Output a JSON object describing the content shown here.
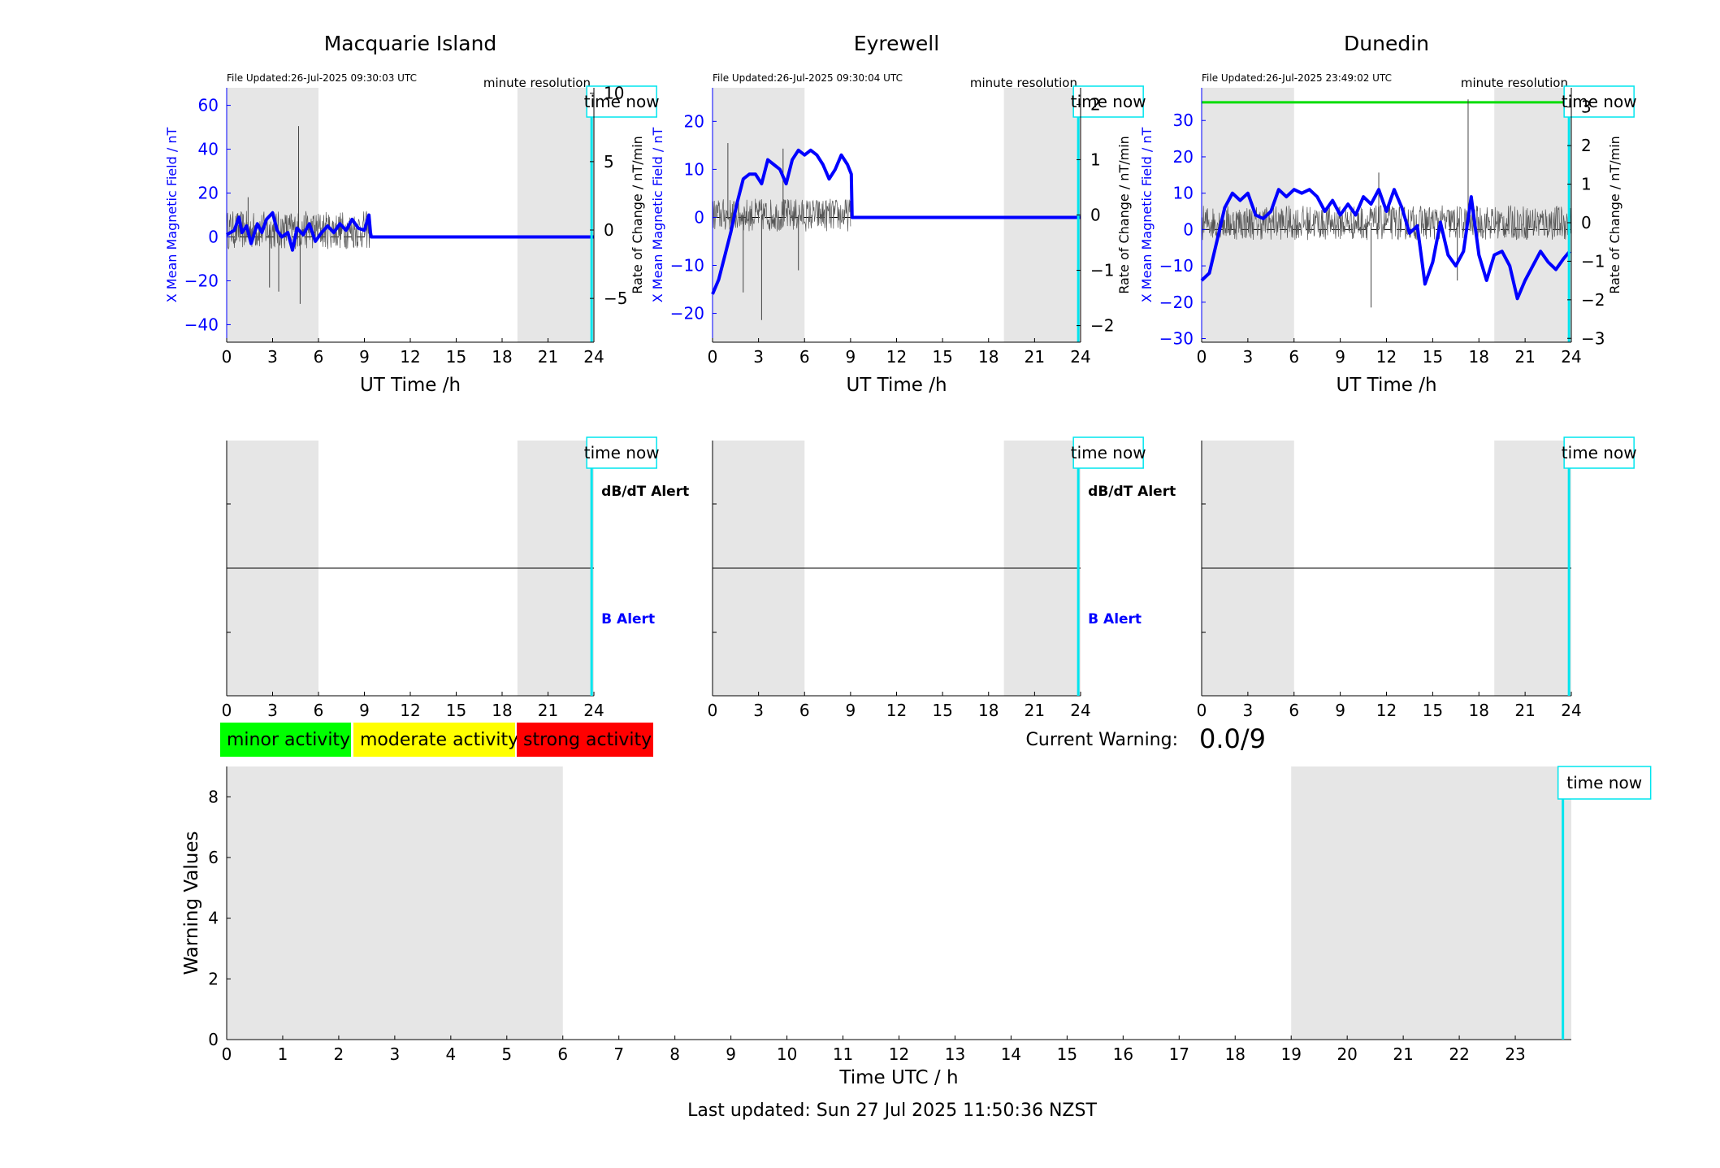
{
  "stations": [
    {
      "title": "Macquarie Island",
      "file_updated": "File Updated:26-Jul-2025 09:30:03 UTC",
      "resolution": "minute resolution",
      "time_now_label": "time now",
      "xlabel": "UT Time /h",
      "ylabel_left": "X Mean Magnetic Field / nT",
      "ylabel_right": "Rate of Change / nT/min",
      "show_alert_labels": true
    },
    {
      "title": "Eyrewell",
      "file_updated": "File Updated:26-Jul-2025 09:30:04 UTC",
      "resolution": "minute resolution",
      "time_now_label": "time now",
      "xlabel": "UT Time /h",
      "ylabel_left": "X Mean Magnetic Field / nT",
      "ylabel_right": "Rate of Change / nT/min",
      "show_alert_labels": true
    },
    {
      "title": "Dunedin",
      "file_updated": "File Updated:26-Jul-2025 23:49:02 UTC",
      "resolution": "minute resolution",
      "time_now_label": "time now",
      "xlabel": "UT Time /h",
      "ylabel_left": "X Mean Magnetic Field / nT",
      "ylabel_right": "Rate of Change / nT/min",
      "show_alert_labels": false
    }
  ],
  "alert_labels": {
    "dbdt": "dB/dT Alert",
    "b": "B Alert"
  },
  "legend": [
    {
      "label": "minor activity",
      "color": "#00ff00"
    },
    {
      "label": "moderate activity",
      "color": "#ffff00"
    },
    {
      "label": "strong activity",
      "color": "#ff0000"
    }
  ],
  "current_warning": {
    "label": "Current Warning:",
    "value": "0.0/9"
  },
  "bottom": {
    "xlabel": "Time UTC / h",
    "ylabel": "Warning Values",
    "time_now_label": "time now"
  },
  "last_updated": "Last updated: Sun 27 Jul 2025 11:50:36 NZST",
  "colors": {
    "b_field": "#0000ff",
    "rate": "#000000",
    "night_shade": "#e6e6e6",
    "time_now": "#00e5ee",
    "threshold": "#00dd00"
  },
  "chart_data": [
    {
      "type": "line",
      "title": "Macquarie Island",
      "xlabel": "UT Time /h",
      "ylabel": "X Mean Magnetic Field / nT",
      "ylabel_right": "Rate of Change / nT/min",
      "xlim": [
        0,
        24
      ],
      "ylim": [
        -48,
        68
      ],
      "ylim_right": [
        -8.2,
        10.4
      ],
      "xticks": [
        0,
        3,
        6,
        9,
        12,
        15,
        18,
        21,
        24
      ],
      "yticks": [
        -40,
        -20,
        0,
        20,
        40,
        60
      ],
      "yticks_right": [
        -5,
        0,
        5,
        10
      ],
      "night_shading": [
        [
          0,
          6
        ],
        [
          19,
          24
        ]
      ],
      "time_now": 23.85,
      "series": [
        {
          "name": "",
          "axis": "left",
          "color": "#0000ff",
          "x": [
            0,
            0.5,
            0.8,
            1,
            1.3,
            1.6,
            2,
            2.3,
            2.6,
            3,
            3.3,
            3.6,
            4,
            4.3,
            4.6,
            5,
            5.4,
            5.8,
            6.2,
            6.6,
            7,
            7.4,
            7.8,
            8.2,
            8.6,
            9,
            9.3,
            9.4,
            9.45,
            24
          ],
          "y": [
            1,
            3,
            9,
            2,
            5,
            -3,
            6,
            2,
            8,
            11,
            3,
            0,
            2,
            -6,
            4,
            1,
            6,
            -2,
            2,
            5,
            2,
            6,
            3,
            8,
            4,
            3,
            10,
            2,
            0,
            0
          ]
        },
        {
          "name": "",
          "axis": "right",
          "color": "#000000",
          "trace": "noise",
          "x_start": 0,
          "x_end": 9.4,
          "amplitude": 1.4,
          "spikes": [
            [
              3.4,
              -4.5
            ],
            [
              4.7,
              7.6
            ],
            [
              4.8,
              -5.4
            ],
            [
              2.8,
              -4.2
            ],
            [
              1.4,
              2.4
            ]
          ]
        }
      ]
    },
    {
      "type": "line",
      "title": "Eyrewell",
      "xlabel": "UT Time /h",
      "ylabel": "X Mean Magnetic Field / nT",
      "ylabel_right": "Rate of Change / nT/min",
      "xlim": [
        0,
        24
      ],
      "ylim": [
        -26,
        27
      ],
      "ylim_right": [
        -2.3,
        2.3
      ],
      "xticks": [
        0,
        3,
        6,
        9,
        12,
        15,
        18,
        21,
        24
      ],
      "yticks": [
        -20,
        -10,
        0,
        10,
        20
      ],
      "yticks_right": [
        -2,
        -1,
        0,
        1,
        2
      ],
      "night_shading": [
        [
          0,
          6
        ],
        [
          19,
          24
        ]
      ],
      "time_now": 23.85,
      "series": [
        {
          "name": "",
          "axis": "left",
          "color": "#0000ff",
          "x": [
            0,
            0.4,
            0.8,
            1.2,
            1.6,
            2,
            2.4,
            2.8,
            3.2,
            3.6,
            4,
            4.4,
            4.8,
            5.2,
            5.6,
            6,
            6.4,
            6.8,
            7.2,
            7.6,
            8,
            8.4,
            8.8,
            9.05,
            9.1,
            24
          ],
          "y": [
            -16,
            -13,
            -8,
            -3,
            3,
            8,
            9,
            9,
            7,
            12,
            11,
            10,
            7,
            12,
            14,
            13,
            14,
            13,
            11,
            8,
            10,
            13,
            11,
            9,
            0,
            0
          ]
        },
        {
          "name": "",
          "axis": "right",
          "color": "#000000",
          "trace": "noise",
          "x_start": 0,
          "x_end": 9.0,
          "amplitude": 0.3,
          "spikes": [
            [
              3.2,
              -1.9
            ],
            [
              1.0,
              1.3
            ],
            [
              2.0,
              -1.4
            ],
            [
              4.6,
              1.2
            ],
            [
              5.6,
              -1.0
            ]
          ]
        }
      ]
    },
    {
      "type": "line",
      "title": "Dunedin",
      "xlabel": "UT Time /h",
      "ylabel": "X Mean Magnetic Field / nT",
      "ylabel_right": "Rate of Change / nT/min",
      "xlim": [
        0,
        24
      ],
      "ylim": [
        -31,
        39
      ],
      "ylim_right": [
        -3.1,
        3.5
      ],
      "xticks": [
        0,
        3,
        6,
        9,
        12,
        15,
        18,
        21,
        24
      ],
      "yticks": [
        -30,
        -20,
        -10,
        0,
        10,
        20,
        30
      ],
      "yticks_right": [
        -3,
        -2,
        -1,
        0,
        1,
        2,
        3
      ],
      "night_shading": [
        [
          0,
          6
        ],
        [
          19,
          24
        ]
      ],
      "time_now": 23.85,
      "threshold_level": 35,
      "series": [
        {
          "name": "",
          "axis": "left",
          "color": "#0000ff",
          "x": [
            0,
            0.5,
            1,
            1.5,
            2,
            2.5,
            3,
            3.5,
            4,
            4.5,
            5,
            5.5,
            6,
            6.5,
            7,
            7.5,
            8,
            8.5,
            9,
            9.5,
            10,
            10.5,
            11,
            11.5,
            12,
            12.5,
            13,
            13.5,
            14,
            14.5,
            15,
            15.5,
            16,
            16.5,
            17,
            17.5,
            18,
            18.5,
            19,
            19.5,
            20,
            20.5,
            21,
            21.5,
            22,
            22.5,
            23,
            23.5,
            23.9
          ],
          "y": [
            -14,
            -12,
            -3,
            6,
            10,
            8,
            10,
            4,
            3,
            5,
            11,
            9,
            11,
            10,
            11,
            9,
            5,
            8,
            4,
            7,
            4,
            9,
            7,
            11,
            5,
            11,
            6,
            -1,
            1,
            -15,
            -9,
            2,
            -7,
            -10,
            -6,
            9,
            -7,
            -14,
            -7,
            -6,
            -10,
            -19,
            -14,
            -10,
            -6,
            -9,
            -11,
            -8,
            -6
          ]
        },
        {
          "name": "",
          "axis": "right",
          "color": "#000000",
          "trace": "noise",
          "x_start": 0,
          "x_end": 24,
          "amplitude": 0.45,
          "spikes": [
            [
              17.3,
              3.2
            ],
            [
              16.6,
              -1.5
            ],
            [
              11.0,
              -2.2
            ],
            [
              11.5,
              1.3
            ],
            [
              23.9,
              2.0
            ]
          ]
        }
      ]
    },
    {
      "type": "line",
      "title": "",
      "xlabel": "Time UTC / h",
      "ylabel": "Warning Values",
      "xlim": [
        0,
        24
      ],
      "ylim": [
        0,
        9
      ],
      "xticks": [
        0,
        1,
        2,
        3,
        4,
        5,
        6,
        7,
        8,
        9,
        10,
        11,
        12,
        13,
        14,
        15,
        16,
        17,
        18,
        19,
        20,
        21,
        22,
        23
      ],
      "yticks": [
        0,
        2,
        4,
        6,
        8
      ],
      "night_shading": [
        [
          0,
          6
        ],
        [
          19,
          24
        ]
      ],
      "time_now": 23.85,
      "series": [
        {
          "name": "",
          "x": [
            0,
            23.85
          ],
          "y": [
            0,
            0
          ]
        }
      ]
    }
  ]
}
